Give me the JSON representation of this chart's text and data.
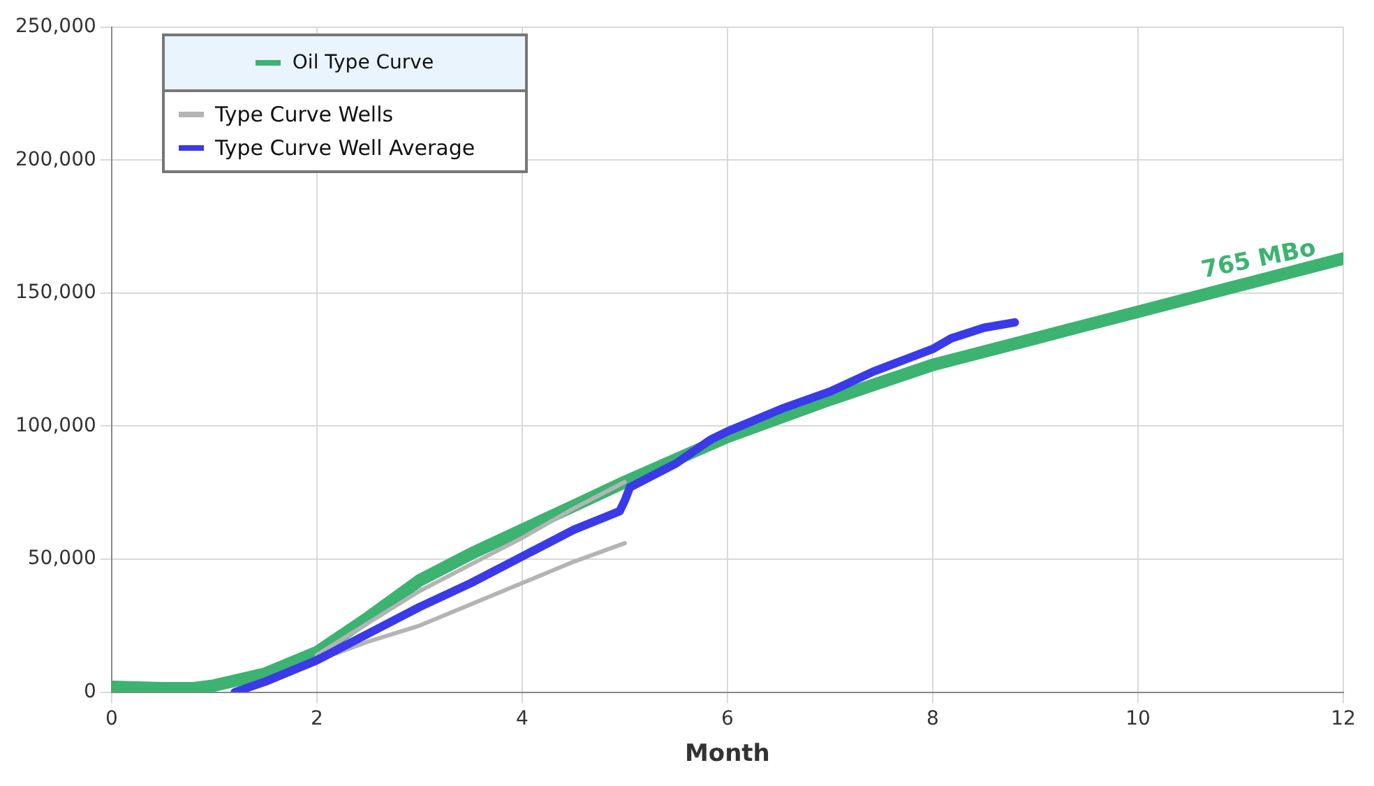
{
  "chart_data": {
    "type": "line",
    "xlabel": "Month",
    "xlim": [
      0,
      12
    ],
    "xticks": [
      0,
      2,
      4,
      6,
      8,
      10,
      12
    ],
    "ylim": [
      0,
      250000
    ],
    "yticks": [
      {
        "value": 0,
        "label": "0"
      },
      {
        "value": 50000,
        "label": "50,000"
      },
      {
        "value": 100000,
        "label": "100,000"
      },
      {
        "value": 150000,
        "label": "150,000"
      },
      {
        "value": 200000,
        "label": "200,000"
      },
      {
        "value": 250000,
        "label": "250,000"
      }
    ],
    "grid": true,
    "legend": "top left",
    "marker": "none",
    "line_style": "solid",
    "series": [
      {
        "name": "Oil Type Curve",
        "color": "#3cb371",
        "x": [
          0,
          0.5,
          0.8,
          1,
          1.5,
          2,
          2.5,
          3,
          3.5,
          4,
          4.5,
          5,
          6,
          7,
          8,
          9,
          10,
          11,
          12
        ],
        "values": [
          2000,
          1500,
          1500,
          2500,
          7000,
          15000,
          28000,
          42000,
          52000,
          61000,
          70000,
          79000,
          96000,
          110000,
          123000,
          133000,
          143000,
          153000,
          163000
        ]
      },
      {
        "name": "Type Curve Wells",
        "color": "#b4b4b4",
        "x": [
          2,
          2.5,
          3,
          3.5,
          4,
          4.5,
          5
        ],
        "values": [
          14000,
          26000,
          38000,
          48000,
          58000,
          69000,
          79000
        ]
      },
      {
        "color": "#b4b4b4",
        "x": [
          2,
          2.5,
          3,
          3.5,
          4,
          4.5,
          5
        ],
        "values": [
          12000,
          19000,
          25000,
          33000,
          41000,
          49000,
          56000
        ]
      },
      {
        "name": "Type Curve Well Average",
        "color": "#3a3ae8",
        "x": [
          1.2,
          1.5,
          2,
          2.5,
          3,
          3.5,
          4,
          4.5,
          4.95,
          5,
          5.05,
          5.5,
          5.84,
          6,
          6.56,
          7,
          7.42,
          8,
          8.18,
          8.5,
          8.8
        ],
        "values": [
          0,
          4000,
          12000,
          22000,
          32000,
          41000,
          51000,
          61000,
          68000,
          72000,
          77000,
          86000,
          95000,
          98000,
          107000,
          113000,
          120500,
          129000,
          133000,
          137000,
          139000
        ]
      }
    ],
    "annotations": [
      {
        "text": "765 MBo",
        "x": 11.2,
        "y": 158000
      }
    ]
  }
}
